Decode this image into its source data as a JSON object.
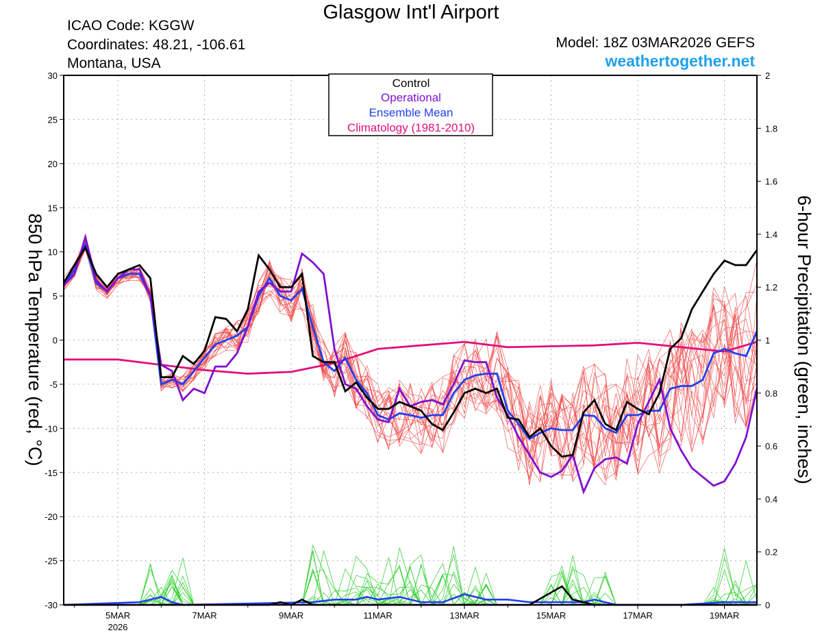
{
  "header": {
    "title": "Glasgow Int'l Airport",
    "icao": "ICAO Code: KGGW",
    "coordinates": "Coordinates: 48.21, -106.61",
    "location": "Montana, USA",
    "model": "Model: 18Z 03MAR2026 GEFS",
    "brand": "weathertogether.net"
  },
  "colors": {
    "control": "#000000",
    "operational": "#8010d0",
    "ensemble_mean": "#2040f0",
    "climatology": "#e0107a",
    "members_temp": "#f04040",
    "members_precip": "#22cc22",
    "brand": "#1ea0f0"
  },
  "chart_data": {
    "type": "line",
    "title": "Glasgow Int'l Airport",
    "ylabel_left": "850 hPa Temperature (red, °C)",
    "ylabel_right": "6-hour Precipitation (green, inches)",
    "y_left_range": [
      -30,
      30
    ],
    "y_left_ticks": [
      "30",
      "25",
      "20",
      "15",
      "10",
      "5",
      "0",
      "-5",
      "-10",
      "-15",
      "-20",
      "-25",
      "-30"
    ],
    "y_right_range": [
      0,
      2
    ],
    "y_right_ticks": [
      "2",
      "1.8",
      "1.6",
      "1.4",
      "1.2",
      "1",
      "0.8",
      "0.6",
      "0.4",
      "0.2",
      "0"
    ],
    "x_range_days": [
      -1.25,
      14.75
    ],
    "x_ticks": [
      {
        "day": 0,
        "label": "5MAR",
        "sub": "2026"
      },
      {
        "day": 2,
        "label": "7MAR",
        "sub": ""
      },
      {
        "day": 4,
        "label": "9MAR",
        "sub": ""
      },
      {
        "day": 6,
        "label": "11MAR",
        "sub": ""
      },
      {
        "day": 8,
        "label": "13MAR",
        "sub": ""
      },
      {
        "day": 10,
        "label": "15MAR",
        "sub": ""
      },
      {
        "day": 12,
        "label": "17MAR",
        "sub": ""
      },
      {
        "day": 14,
        "label": "19MAR",
        "sub": ""
      }
    ],
    "legend": [
      "Control",
      "Operational",
      "Ensemble Mean",
      "Climatology (1981-2010)"
    ],
    "control": [
      [
        -1.25,
        6.5
      ],
      [
        -1.0,
        8.5
      ],
      [
        -0.75,
        10.5
      ],
      [
        -0.5,
        7.5
      ],
      [
        -0.25,
        6.0
      ],
      [
        0.0,
        7.5
      ],
      [
        0.25,
        8.0
      ],
      [
        0.5,
        8.5
      ],
      [
        0.75,
        7.0
      ],
      [
        1.0,
        -4.2
      ],
      [
        1.25,
        -4.2
      ],
      [
        1.5,
        -1.8
      ],
      [
        1.75,
        -2.7
      ],
      [
        2.0,
        -1.2
      ],
      [
        2.25,
        2.6
      ],
      [
        2.5,
        2.4
      ],
      [
        2.75,
        1.0
      ],
      [
        3.0,
        3.5
      ],
      [
        3.25,
        9.6
      ],
      [
        3.5,
        8.0
      ],
      [
        3.75,
        6.0
      ],
      [
        4.0,
        6.0
      ],
      [
        4.25,
        7.5
      ],
      [
        4.5,
        -1.8
      ],
      [
        4.75,
        -2.5
      ],
      [
        5.0,
        -2.5
      ],
      [
        5.25,
        -5.8
      ],
      [
        5.5,
        -4.8
      ],
      [
        5.75,
        -6.5
      ],
      [
        6.0,
        -7.8
      ],
      [
        6.25,
        -7.8
      ],
      [
        6.5,
        -7.0
      ],
      [
        6.75,
        -7.5
      ],
      [
        7.0,
        -8.0
      ],
      [
        7.25,
        -9.5
      ],
      [
        7.5,
        -10.2
      ],
      [
        7.75,
        -8.2
      ],
      [
        8.0,
        -6.0
      ],
      [
        8.25,
        -5.5
      ],
      [
        8.5,
        -6.0
      ],
      [
        8.75,
        -5.5
      ],
      [
        9.0,
        -8.8
      ],
      [
        9.25,
        -9.0
      ],
      [
        9.5,
        -11.0
      ],
      [
        9.75,
        -10.0
      ],
      [
        10.0,
        -12.0
      ],
      [
        10.25,
        -13.2
      ],
      [
        10.5,
        -13.0
      ],
      [
        10.75,
        -8.2
      ],
      [
        11.0,
        -6.8
      ],
      [
        11.25,
        -9.5
      ],
      [
        11.5,
        -10.2
      ],
      [
        11.75,
        -7.0
      ],
      [
        12.0,
        -7.8
      ],
      [
        12.25,
        -8.4
      ],
      [
        12.5,
        -6.0
      ],
      [
        12.75,
        -1.0
      ],
      [
        13.0,
        0.2
      ],
      [
        13.25,
        3.5
      ],
      [
        13.5,
        5.5
      ],
      [
        13.75,
        7.5
      ],
      [
        14.0,
        9.0
      ],
      [
        14.25,
        8.5
      ],
      [
        14.5,
        8.5
      ],
      [
        14.75,
        10.2
      ]
    ],
    "operational": [
      [
        -1.25,
        6.2
      ],
      [
        -1.0,
        7.5
      ],
      [
        -0.75,
        11.7
      ],
      [
        -0.5,
        6.8
      ],
      [
        -0.25,
        5.5
      ],
      [
        0.0,
        7.0
      ],
      [
        0.25,
        8.0
      ],
      [
        0.5,
        8.0
      ],
      [
        0.75,
        5.0
      ],
      [
        1.0,
        -2.8
      ],
      [
        1.25,
        -3.5
      ],
      [
        1.5,
        -6.8
      ],
      [
        1.75,
        -5.5
      ],
      [
        2.0,
        -6.0
      ],
      [
        2.25,
        -3.0
      ],
      [
        2.5,
        -3.0
      ],
      [
        2.75,
        -1.5
      ],
      [
        3.0,
        1.5
      ],
      [
        3.25,
        5.5
      ],
      [
        3.5,
        6.5
      ],
      [
        3.75,
        5.5
      ],
      [
        4.0,
        5.5
      ],
      [
        4.25,
        9.8
      ],
      [
        4.5,
        8.8
      ],
      [
        4.75,
        7.5
      ],
      [
        5.0,
        -1.0
      ],
      [
        5.25,
        -5.0
      ],
      [
        5.5,
        -5.5
      ],
      [
        5.75,
        -7.5
      ],
      [
        6.0,
        -9.0
      ],
      [
        6.25,
        -9.3
      ],
      [
        6.5,
        -5.5
      ],
      [
        6.75,
        -7.5
      ],
      [
        7.0,
        -7.0
      ],
      [
        7.25,
        -6.8
      ],
      [
        7.5,
        -7.3
      ],
      [
        7.75,
        -5.0
      ],
      [
        8.0,
        -2.3
      ],
      [
        8.25,
        -2.5
      ],
      [
        8.5,
        -2.5
      ],
      [
        8.75,
        -6.5
      ],
      [
        9.0,
        -8.5
      ],
      [
        9.25,
        -11.0
      ],
      [
        9.5,
        -13.0
      ],
      [
        9.75,
        -15.0
      ],
      [
        10.0,
        -15.5
      ],
      [
        10.25,
        -14.8
      ],
      [
        10.5,
        -13.0
      ],
      [
        10.75,
        -17.2
      ],
      [
        11.0,
        -14.5
      ],
      [
        11.25,
        -13.5
      ],
      [
        11.5,
        -13.3
      ],
      [
        11.75,
        -14.0
      ],
      [
        12.0,
        -9.5
      ],
      [
        12.25,
        -7.0
      ],
      [
        12.5,
        -4.5
      ],
      [
        12.75,
        -10.0
      ],
      [
        13.0,
        -12.5
      ],
      [
        13.25,
        -14.5
      ],
      [
        13.5,
        -15.5
      ],
      [
        13.75,
        -16.5
      ],
      [
        14.0,
        -16.0
      ],
      [
        14.25,
        -14.0
      ],
      [
        14.5,
        -11.0
      ],
      [
        14.75,
        -5.5
      ]
    ],
    "ensemble_mean": [
      [
        -1.25,
        6.3
      ],
      [
        -1.0,
        8.0
      ],
      [
        -0.75,
        10.8
      ],
      [
        -0.5,
        6.5
      ],
      [
        -0.25,
        5.5
      ],
      [
        0.0,
        7.0
      ],
      [
        0.25,
        7.5
      ],
      [
        0.5,
        7.5
      ],
      [
        0.75,
        5.0
      ],
      [
        1.0,
        -5.0
      ],
      [
        1.25,
        -4.5
      ],
      [
        1.5,
        -5.0
      ],
      [
        1.75,
        -3.5
      ],
      [
        2.0,
        -2.0
      ],
      [
        2.25,
        -0.5
      ],
      [
        2.5,
        0.0
      ],
      [
        2.75,
        0.5
      ],
      [
        3.0,
        1.5
      ],
      [
        3.25,
        5.0
      ],
      [
        3.5,
        7.0
      ],
      [
        3.75,
        5.0
      ],
      [
        4.0,
        4.5
      ],
      [
        4.25,
        5.8
      ],
      [
        4.5,
        1.5
      ],
      [
        4.75,
        -2.5
      ],
      [
        5.0,
        -3.5
      ],
      [
        5.25,
        -2.0
      ],
      [
        5.5,
        -4.5
      ],
      [
        5.75,
        -6.0
      ],
      [
        6.0,
        -8.5
      ],
      [
        6.25,
        -9.0
      ],
      [
        6.5,
        -8.3
      ],
      [
        6.75,
        -8.5
      ],
      [
        7.0,
        -8.8
      ],
      [
        7.25,
        -8.5
      ],
      [
        7.5,
        -8.5
      ],
      [
        7.75,
        -6.0
      ],
      [
        8.0,
        -4.5
      ],
      [
        8.25,
        -4.0
      ],
      [
        8.5,
        -3.8
      ],
      [
        8.75,
        -3.8
      ],
      [
        9.0,
        -8.0
      ],
      [
        9.25,
        -9.5
      ],
      [
        9.5,
        -11.2
      ],
      [
        9.75,
        -10.5
      ],
      [
        10.0,
        -10.0
      ],
      [
        10.25,
        -10.2
      ],
      [
        10.5,
        -10.2
      ],
      [
        10.75,
        -8.5
      ],
      [
        11.0,
        -8.6
      ],
      [
        11.25,
        -10.0
      ],
      [
        11.5,
        -10.5
      ],
      [
        11.75,
        -8.5
      ],
      [
        12.0,
        -8.5
      ],
      [
        12.25,
        -8.0
      ],
      [
        12.5,
        -8.0
      ],
      [
        12.75,
        -5.5
      ],
      [
        13.0,
        -5.2
      ],
      [
        13.25,
        -5.2
      ],
      [
        13.5,
        -4.5
      ],
      [
        13.75,
        -1.5
      ],
      [
        14.0,
        -1.0
      ],
      [
        14.25,
        -1.5
      ],
      [
        14.5,
        -1.8
      ],
      [
        14.75,
        1.0
      ]
    ],
    "climatology": [
      [
        -1.25,
        -2.2
      ],
      [
        0.0,
        -2.2
      ],
      [
        1.0,
        -2.8
      ],
      [
        2.0,
        -3.4
      ],
      [
        3.0,
        -3.8
      ],
      [
        4.0,
        -3.6
      ],
      [
        5.0,
        -2.6
      ],
      [
        6.0,
        -1.0
      ],
      [
        7.0,
        -0.6
      ],
      [
        8.0,
        -0.2
      ],
      [
        9.0,
        -0.8
      ],
      [
        10.0,
        -0.7
      ],
      [
        11.0,
        -0.6
      ],
      [
        12.0,
        -0.3
      ],
      [
        13.0,
        -0.8
      ],
      [
        14.0,
        -1.3
      ],
      [
        14.75,
        -0.2
      ]
    ],
    "precip_control": [
      [
        -1.25,
        0
      ],
      [
        3.5,
        0
      ],
      [
        3.75,
        0.01
      ],
      [
        4.0,
        0
      ],
      [
        4.25,
        0.02
      ],
      [
        4.5,
        0
      ],
      [
        9.5,
        0
      ],
      [
        10.25,
        0.07
      ],
      [
        10.5,
        0.02
      ],
      [
        10.75,
        0.01
      ],
      [
        11.0,
        0
      ],
      [
        14.75,
        0
      ]
    ],
    "precip_operational": [
      [
        -1.25,
        0
      ],
      [
        14.75,
        0
      ]
    ],
    "precip_ensemble_mean": [
      [
        -1.25,
        0
      ],
      [
        0.5,
        0.01
      ],
      [
        0.75,
        0.02
      ],
      [
        1.0,
        0.03
      ],
      [
        1.25,
        0.01
      ],
      [
        1.5,
        0
      ],
      [
        4.5,
        0.01
      ],
      [
        5.0,
        0.02
      ],
      [
        5.5,
        0.02
      ],
      [
        5.75,
        0.03
      ],
      [
        6.0,
        0.02
      ],
      [
        6.5,
        0.03
      ],
      [
        7.0,
        0.01
      ],
      [
        7.5,
        0.01
      ],
      [
        8.0,
        0.04
      ],
      [
        8.5,
        0.02
      ],
      [
        9.0,
        0.02
      ],
      [
        9.5,
        0.01
      ],
      [
        10.0,
        0.01
      ],
      [
        10.75,
        0.01
      ],
      [
        11.0,
        0.02
      ],
      [
        11.5,
        0.0
      ],
      [
        13.0,
        0.0
      ],
      [
        14.0,
        0.01
      ],
      [
        14.75,
        0.01
      ]
    ]
  }
}
